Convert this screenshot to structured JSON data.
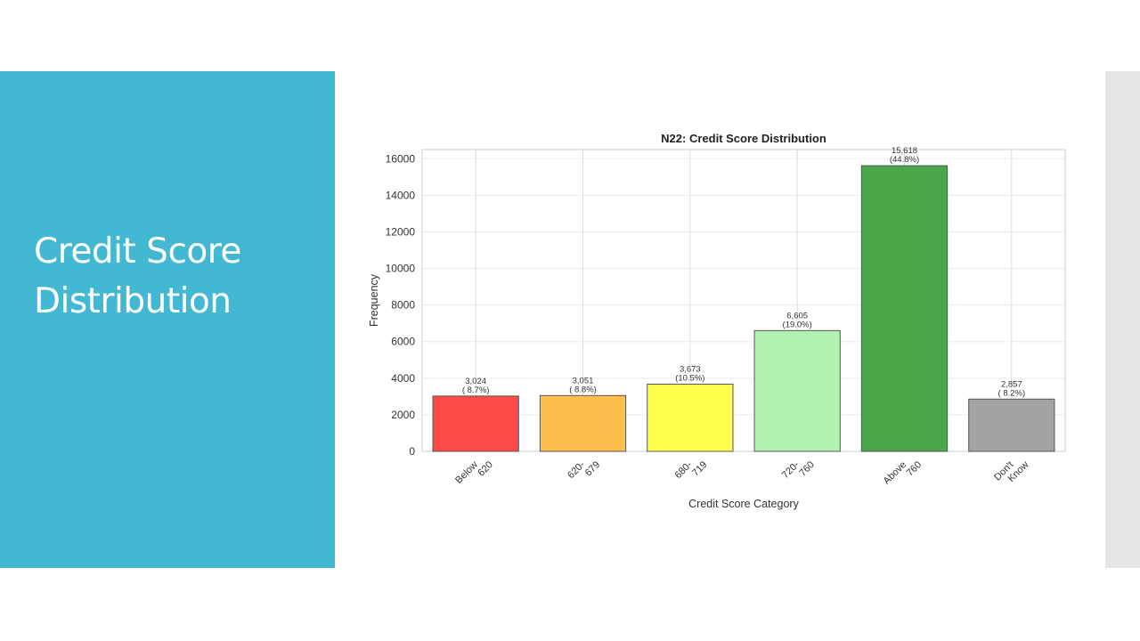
{
  "slide": {
    "title": "Credit Score Distribution",
    "accent_color": "#42b8d2",
    "strip_color": "#e6e6e6"
  },
  "chart_data": {
    "type": "bar",
    "title": "N22: Credit Score Distribution",
    "xlabel": "Credit Score Category",
    "ylabel": "Frequency",
    "ylim": [
      0,
      16500
    ],
    "yticks": [
      0,
      2000,
      4000,
      6000,
      8000,
      10000,
      12000,
      14000,
      16000
    ],
    "grid": true,
    "categories": [
      [
        "Below",
        "620"
      ],
      [
        "620-",
        "679"
      ],
      [
        "680-",
        "719"
      ],
      [
        "720-",
        "760"
      ],
      [
        "Above",
        "760"
      ],
      [
        "Don't",
        "Know"
      ]
    ],
    "values": [
      3024,
      3051,
      3673,
      6605,
      15618,
      2857
    ],
    "value_labels": [
      "3,024",
      "3,051",
      "3,673",
      "6,605",
      "15,618",
      "2,857"
    ],
    "percent_labels": [
      "( 8.7%)",
      "( 8.8%)",
      "(10.5%)",
      "(19.0%)",
      "(44.8%)",
      "( 8.2%)"
    ],
    "colors": [
      "#ff4a4a",
      "#ffbf4d",
      "#ffff4d",
      "#b1f2b1",
      "#4aa84a",
      "#a3a3a3"
    ]
  }
}
